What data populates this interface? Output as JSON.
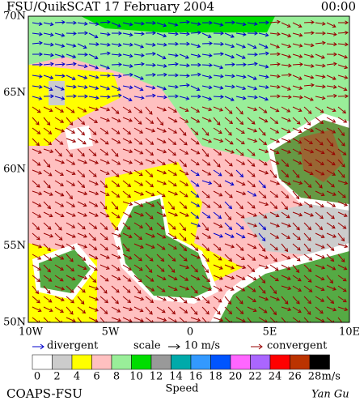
{
  "header": {
    "title": "FSU/QuikSCAT 17 February 2004",
    "time": "00:00"
  },
  "map": {
    "lat_labels": [
      "70N",
      "65N",
      "60N",
      "55N",
      "50N"
    ],
    "lon_labels": [
      "10W",
      "5W",
      "0",
      "5E",
      "10E"
    ]
  },
  "legend": {
    "divergent": "divergent",
    "scale": "scale",
    "scale_value": "10 m/s",
    "convergent": "convergent",
    "divergent_color": "#0000cc",
    "convergent_color": "#990000"
  },
  "colorbar": {
    "ticks": [
      0,
      2,
      4,
      6,
      8,
      10,
      12,
      14,
      16,
      18,
      20,
      22,
      24,
      26,
      28
    ],
    "colors": [
      "#ffffff",
      "#cccccc",
      "#ffff00",
      "#ffc0c0",
      "#99ee99",
      "#00dd00",
      "#999999",
      "#00aaaa",
      "#3399ff",
      "#0055ff",
      "#ff66ff",
      "#aa66ff",
      "#ff0000",
      "#bb3300",
      "#000000"
    ],
    "unit": "m/s",
    "label": "Speed"
  },
  "footer": {
    "left": "COAPS-FSU",
    "right": "Yan Gu"
  }
}
